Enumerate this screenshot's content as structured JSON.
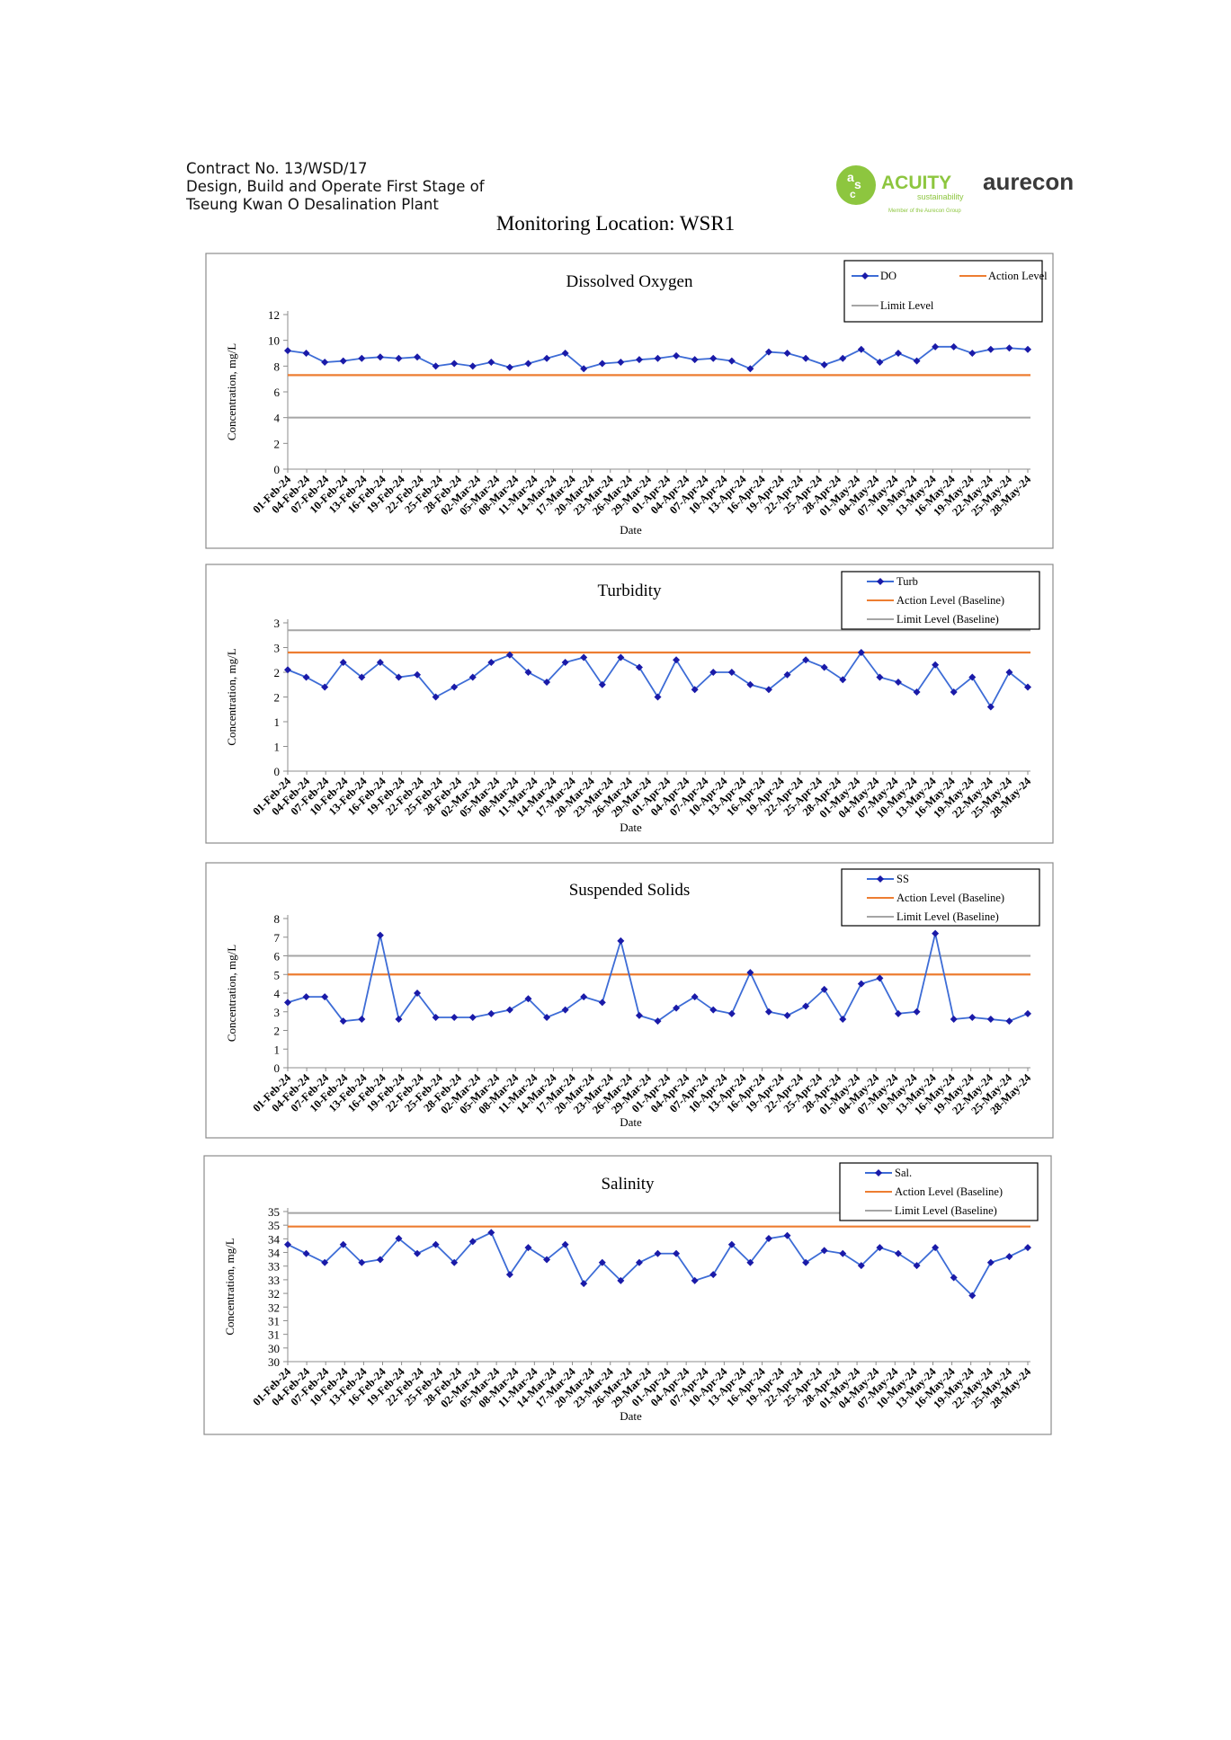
{
  "header": {
    "lines": [
      "Contract No. 13/WSD/17",
      "Design, Build and Operate First Stage of",
      "Tseung Kwan O Desalination Plant"
    ],
    "page_title": "Monitoring Location: WSR1"
  },
  "logos": {
    "acuity_text": "ACUITY",
    "acuity_sub": "sustainability",
    "acuity_member": "Member of the Aurecon Group",
    "aurecon_text": "aurecon",
    "acuity_color": "#8dc63f"
  },
  "colors": {
    "series": "#2233cc",
    "series_marker": "#1a1aa8",
    "action": "#ed7d31",
    "limit": "#a5a5a5"
  },
  "chart_data": [
    {
      "type": "line",
      "title": "Dissolved Oxygen",
      "xlabel": "Date",
      "ylabel": "Concentration, mg/L",
      "ylim": [
        0,
        12
      ],
      "yticks": [
        "0",
        "2",
        "4",
        "6",
        "8",
        "10",
        "12"
      ],
      "x_ticks": [
        "01-Feb-24",
        "04-Feb-24",
        "07-Feb-24",
        "10-Feb-24",
        "13-Feb-24",
        "16-Feb-24",
        "19-Feb-24",
        "22-Feb-24",
        "25-Feb-24",
        "28-Feb-24",
        "02-Mar-24",
        "05-Mar-24",
        "08-Mar-24",
        "11-Mar-24",
        "14-Mar-24",
        "17-Mar-24",
        "20-Mar-24",
        "23-Mar-24",
        "26-Mar-24",
        "29-Mar-24",
        "01-Apr-24",
        "04-Apr-24",
        "07-Apr-24",
        "10-Apr-24",
        "13-Apr-24",
        "16-Apr-24",
        "19-Apr-24",
        "22-Apr-24",
        "25-Apr-24",
        "28-Apr-24",
        "01-May-24",
        "04-May-24",
        "07-May-24",
        "10-May-24",
        "13-May-24",
        "16-May-24",
        "19-May-24",
        "22-May-24",
        "25-May-24",
        "28-May-24"
      ],
      "x_range": [
        0,
        120
      ],
      "legend": {
        "position": "top-right",
        "entries": [
          "DO",
          "Action Level",
          "Limit Level"
        ]
      },
      "series": [
        {
          "name": "DO",
          "x": [
            0,
            3,
            6,
            9,
            12,
            15,
            18,
            21,
            24,
            27,
            30,
            33,
            36,
            39,
            42,
            45,
            48,
            51,
            54,
            57,
            60,
            63,
            66,
            69,
            72,
            75,
            78,
            81,
            84,
            87,
            90,
            93,
            96,
            99,
            102,
            105,
            108,
            111,
            114,
            117,
            120
          ],
          "values": [
            9.2,
            9.0,
            8.3,
            8.4,
            8.6,
            8.7,
            8.6,
            8.7,
            8.0,
            8.2,
            8.0,
            8.3,
            7.9,
            8.2,
            8.6,
            9.0,
            7.8,
            8.2,
            8.3,
            8.5,
            8.6,
            8.8,
            8.5,
            8.6,
            8.4,
            7.8,
            9.1,
            9.0,
            8.6,
            8.1,
            8.6,
            9.3,
            8.3,
            9.0,
            8.4,
            9.5,
            9.5,
            9.0,
            9.3,
            9.4,
            9.3
          ]
        }
      ],
      "action_level": 7.3,
      "limit_level": 4.0
    },
    {
      "type": "line",
      "title": "Turbidity",
      "xlabel": "Date",
      "ylabel": "Concentration, mg/L",
      "ylim": [
        0,
        3
      ],
      "yticks": [
        "0",
        "1",
        "1",
        "2",
        "2",
        "3",
        "3"
      ],
      "x_ticks": [
        "01-Feb-24",
        "04-Feb-24",
        "07-Feb-24",
        "10-Feb-24",
        "13-Feb-24",
        "16-Feb-24",
        "19-Feb-24",
        "22-Feb-24",
        "25-Feb-24",
        "28-Feb-24",
        "02-Mar-24",
        "05-Mar-24",
        "08-Mar-24",
        "11-Mar-24",
        "14-Mar-24",
        "17-Mar-24",
        "20-Mar-24",
        "23-Mar-24",
        "26-Mar-24",
        "29-Mar-24",
        "01-Apr-24",
        "04-Apr-24",
        "07-Apr-24",
        "10-Apr-24",
        "13-Apr-24",
        "16-Apr-24",
        "19-Apr-24",
        "22-Apr-24",
        "25-Apr-24",
        "28-Apr-24",
        "01-May-24",
        "04-May-24",
        "07-May-24",
        "10-May-24",
        "13-May-24",
        "16-May-24",
        "19-May-24",
        "22-May-24",
        "25-May-24",
        "28-May-24"
      ],
      "x_range": [
        0,
        120
      ],
      "legend": {
        "position": "top-right",
        "entries": [
          "Turb",
          "Action Level (Baseline)",
          "Limit Level (Baseline)"
        ]
      },
      "series": [
        {
          "name": "Turb",
          "x": [
            0,
            3,
            6,
            9,
            12,
            15,
            18,
            21,
            24,
            27,
            30,
            33,
            36,
            39,
            42,
            45,
            48,
            51,
            54,
            57,
            60,
            63,
            66,
            69,
            72,
            75,
            78,
            81,
            84,
            87,
            90,
            93,
            96,
            99,
            102,
            105,
            108,
            111,
            114,
            117,
            120
          ],
          "values": [
            2.05,
            1.9,
            1.7,
            2.2,
            1.9,
            2.2,
            1.9,
            1.95,
            1.5,
            1.7,
            1.9,
            2.2,
            2.35,
            2.0,
            1.8,
            2.2,
            2.3,
            1.75,
            2.3,
            2.1,
            1.5,
            2.25,
            1.65,
            2.0,
            2.0,
            1.75,
            1.65,
            1.95,
            2.25,
            2.1,
            1.85,
            2.4,
            1.9,
            1.8,
            1.6,
            2.15,
            1.6,
            1.9,
            1.3,
            2.0,
            1.7
          ]
        }
      ],
      "action_level": 2.4,
      "limit_level": 2.85
    },
    {
      "type": "line",
      "title": "Suspended Solids",
      "xlabel": "Date",
      "ylabel": "Concentration, mg/L",
      "ylim": [
        0,
        8
      ],
      "yticks": [
        "0",
        "1",
        "2",
        "3",
        "4",
        "5",
        "6",
        "7",
        "8"
      ],
      "x_ticks": [
        "01-Feb-24",
        "04-Feb-24",
        "07-Feb-24",
        "10-Feb-24",
        "13-Feb-24",
        "16-Feb-24",
        "19-Feb-24",
        "22-Feb-24",
        "25-Feb-24",
        "28-Feb-24",
        "02-Mar-24",
        "05-Mar-24",
        "08-Mar-24",
        "11-Mar-24",
        "14-Mar-24",
        "17-Mar-24",
        "20-Mar-24",
        "23-Mar-24",
        "26-Mar-24",
        "29-Mar-24",
        "01-Apr-24",
        "04-Apr-24",
        "07-Apr-24",
        "10-Apr-24",
        "13-Apr-24",
        "16-Apr-24",
        "19-Apr-24",
        "22-Apr-24",
        "25-Apr-24",
        "28-Apr-24",
        "01-May-24",
        "04-May-24",
        "07-May-24",
        "10-May-24",
        "13-May-24",
        "16-May-24",
        "19-May-24",
        "22-May-24",
        "25-May-24",
        "28-May-24"
      ],
      "x_range": [
        0,
        120
      ],
      "legend": {
        "position": "top-right",
        "entries": [
          "SS",
          "Action Level (Baseline)",
          "Limit Level (Baseline)"
        ]
      },
      "series": [
        {
          "name": "SS",
          "x": [
            0,
            3,
            6,
            9,
            12,
            15,
            18,
            21,
            24,
            27,
            30,
            33,
            36,
            39,
            42,
            45,
            48,
            51,
            54,
            57,
            60,
            63,
            66,
            69,
            72,
            75,
            78,
            81,
            84,
            87,
            90,
            93,
            96,
            99,
            102,
            105,
            108,
            111,
            114,
            117,
            120
          ],
          "values": [
            3.5,
            3.8,
            3.8,
            2.5,
            2.6,
            7.1,
            2.6,
            4.0,
            2.7,
            2.7,
            2.7,
            2.9,
            3.1,
            3.7,
            2.7,
            3.1,
            3.8,
            3.5,
            6.8,
            2.8,
            2.5,
            3.2,
            3.8,
            3.1,
            2.9,
            5.1,
            3.0,
            2.8,
            3.3,
            4.2,
            2.6,
            4.5,
            4.8,
            2.9,
            3.0,
            7.2,
            2.6,
            2.7,
            2.6,
            2.5,
            2.9
          ]
        }
      ],
      "action_level": 5.0,
      "limit_level": 6.0
    },
    {
      "type": "line",
      "title": "Salinity",
      "xlabel": "Date",
      "ylabel": "Concentration, mg/L",
      "ylim": [
        30,
        35
      ],
      "yticks": [
        "30",
        "30",
        "31",
        "31",
        "32",
        "32",
        "33",
        "33",
        "34",
        "34",
        "35",
        "35"
      ],
      "x_ticks": [
        "01-Feb-24",
        "04-Feb-24",
        "07-Feb-24",
        "10-Feb-24",
        "13-Feb-24",
        "16-Feb-24",
        "19-Feb-24",
        "22-Feb-24",
        "25-Feb-24",
        "28-Feb-24",
        "02-Mar-24",
        "05-Mar-24",
        "08-Mar-24",
        "11-Mar-24",
        "14-Mar-24",
        "17-Mar-24",
        "20-Mar-24",
        "23-Mar-24",
        "26-Mar-24",
        "29-Mar-24",
        "01-Apr-24",
        "04-Apr-24",
        "07-Apr-24",
        "10-Apr-24",
        "13-Apr-24",
        "16-Apr-24",
        "19-Apr-24",
        "22-Apr-24",
        "25-Apr-24",
        "28-Apr-24",
        "01-May-24",
        "04-May-24",
        "07-May-24",
        "10-May-24",
        "13-May-24",
        "16-May-24",
        "19-May-24",
        "22-May-24",
        "25-May-24",
        "28-May-24"
      ],
      "x_range": [
        0,
        120
      ],
      "legend": {
        "position": "top-right",
        "entries": [
          "Sal.",
          "Action Level (Baseline)",
          "Limit Level (Baseline)"
        ]
      },
      "series": [
        {
          "name": "Sal.",
          "x": [
            0,
            3,
            6,
            9,
            12,
            15,
            18,
            21,
            24,
            27,
            30,
            33,
            36,
            39,
            42,
            45,
            48,
            51,
            54,
            57,
            60,
            63,
            66,
            69,
            72,
            75,
            78,
            81,
            84,
            87,
            90,
            93,
            96,
            99,
            102,
            105,
            108,
            111,
            114,
            117,
            120
          ],
          "values": [
            33.9,
            33.6,
            33.3,
            33.9,
            33.3,
            33.4,
            34.1,
            33.6,
            33.9,
            33.3,
            34.0,
            34.3,
            32.9,
            33.8,
            33.4,
            33.9,
            32.6,
            33.3,
            32.7,
            33.3,
            33.6,
            33.6,
            32.7,
            32.9,
            33.9,
            33.3,
            34.1,
            34.2,
            33.3,
            33.7,
            33.6,
            33.2,
            33.8,
            33.6,
            33.2,
            33.8,
            32.8,
            32.2,
            33.3,
            33.5,
            33.8
          ]
        },
        {
          "name": "",
          "x": [],
          "values": []
        }
      ],
      "action_level": 34.5,
      "limit_level": 34.95
    }
  ]
}
